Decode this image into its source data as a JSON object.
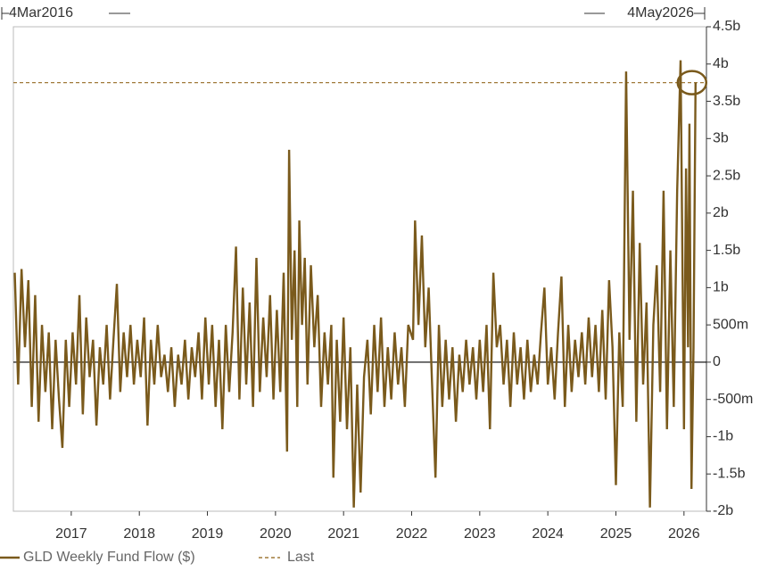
{
  "chart_data": {
    "type": "line",
    "start_label": "4Mar2016",
    "end_label": "4May2026",
    "x": [
      2016.17,
      2016.22,
      2016.27,
      2016.32,
      2016.37,
      2016.42,
      2016.47,
      2016.52,
      2016.57,
      2016.62,
      2016.67,
      2016.72,
      2016.77,
      2016.82,
      2016.87,
      2016.92,
      2016.97,
      2017.02,
      2017.07,
      2017.12,
      2017.17,
      2017.22,
      2017.27,
      2017.32,
      2017.37,
      2017.42,
      2017.47,
      2017.52,
      2017.57,
      2017.62,
      2017.67,
      2017.72,
      2017.77,
      2017.82,
      2017.87,
      2017.92,
      2017.97,
      2018.02,
      2018.07,
      2018.12,
      2018.17,
      2018.22,
      2018.27,
      2018.32,
      2018.37,
      2018.42,
      2018.47,
      2018.52,
      2018.57,
      2018.62,
      2018.67,
      2018.72,
      2018.77,
      2018.82,
      2018.87,
      2018.92,
      2018.97,
      2019.02,
      2019.07,
      2019.12,
      2019.17,
      2019.22,
      2019.27,
      2019.32,
      2019.37,
      2019.42,
      2019.47,
      2019.52,
      2019.57,
      2019.62,
      2019.67,
      2019.72,
      2019.77,
      2019.82,
      2019.87,
      2019.92,
      2019.97,
      2020.02,
      2020.07,
      2020.12,
      2020.17,
      2020.2,
      2020.24,
      2020.28,
      2020.32,
      2020.35,
      2020.39,
      2020.43,
      2020.47,
      2020.52,
      2020.57,
      2020.62,
      2020.67,
      2020.72,
      2020.77,
      2020.82,
      2020.85,
      2020.9,
      2020.95,
      2021.0,
      2021.05,
      2021.1,
      2021.15,
      2021.2,
      2021.25,
      2021.3,
      2021.35,
      2021.4,
      2021.45,
      2021.5,
      2021.55,
      2021.6,
      2021.65,
      2021.7,
      2021.75,
      2021.8,
      2021.85,
      2021.9,
      2021.95,
      2022.02,
      2022.05,
      2022.1,
      2022.15,
      2022.2,
      2022.25,
      2022.3,
      2022.35,
      2022.4,
      2022.45,
      2022.5,
      2022.55,
      2022.6,
      2022.65,
      2022.7,
      2022.75,
      2022.8,
      2022.85,
      2022.9,
      2022.95,
      2023.0,
      2023.05,
      2023.1,
      2023.15,
      2023.2,
      2023.25,
      2023.3,
      2023.35,
      2023.4,
      2023.45,
      2023.5,
      2023.55,
      2023.6,
      2023.65,
      2023.7,
      2023.75,
      2023.8,
      2023.85,
      2023.9,
      2023.95,
      2024.0,
      2024.05,
      2024.1,
      2024.15,
      2024.2,
      2024.25,
      2024.3,
      2024.35,
      2024.4,
      2024.45,
      2024.5,
      2024.55,
      2024.6,
      2024.65,
      2024.7,
      2024.75,
      2024.8,
      2024.85,
      2024.9,
      2024.95,
      2025.0,
      2025.05,
      2025.1,
      2025.15,
      2025.2,
      2025.25,
      2025.3,
      2025.35,
      2025.4,
      2025.45,
      2025.5,
      2025.55,
      2025.6,
      2025.65,
      2025.7,
      2025.75,
      2025.8,
      2025.85,
      2025.9,
      2025.95,
      2026.0,
      2026.03,
      2026.06,
      2026.08,
      2026.11,
      2026.14,
      2026.17
    ],
    "series": [
      {
        "name": "GLD Weekly Fund Flow ($)",
        "color": "#7a5a1c",
        "values": [
          1200000000.0,
          -300000000.0,
          1250000000.0,
          200000000.0,
          1100000000.0,
          -600000000.0,
          900000000.0,
          -800000000.0,
          500000000.0,
          -400000000.0,
          400000000.0,
          -900000000.0,
          300000000.0,
          -500000000.0,
          -1150000000.0,
          300000000.0,
          -600000000.0,
          400000000.0,
          -300000000.0,
          900000000.0,
          -700000000.0,
          600000000.0,
          -200000000.0,
          300000000.0,
          -850000000.0,
          200000000.0,
          -300000000.0,
          500000000.0,
          -500000000.0,
          300000000.0,
          1050000000.0,
          -400000000.0,
          400000000.0,
          -200000000.0,
          500000000.0,
          -300000000.0,
          300000000.0,
          -200000000.0,
          600000000.0,
          -850000000.0,
          300000000.0,
          -300000000.0,
          500000000.0,
          -200000000.0,
          100000000.0,
          -400000000.0,
          200000000.0,
          -600000000.0,
          100000000.0,
          -300000000.0,
          300000000.0,
          -500000000.0,
          200000000.0,
          -200000000.0,
          400000000.0,
          -500000000.0,
          600000000.0,
          -300000000.0,
          500000000.0,
          -600000000.0,
          300000000.0,
          -900000000.0,
          500000000.0,
          -400000000.0,
          400000000.0,
          1550000000.0,
          -500000000.0,
          1000000000.0,
          -300000000.0,
          800000000.0,
          -600000000.0,
          1400000000.0,
          -400000000.0,
          600000000.0,
          -200000000.0,
          900000000.0,
          -500000000.0,
          700000000.0,
          -400000000.0,
          1200000000.0,
          -1200000000.0,
          2850000000.0,
          300000000.0,
          1500000000.0,
          -600000000.0,
          1900000000.0,
          500000000.0,
          1400000000.0,
          -300000000.0,
          1300000000.0,
          200000000.0,
          900000000.0,
          -600000000.0,
          400000000.0,
          -300000000.0,
          500000000.0,
          -1550000000.0,
          300000000.0,
          -800000000.0,
          600000000.0,
          -900000000.0,
          200000000.0,
          -1950000000.0,
          -300000000.0,
          -1750000000.0,
          -200000000.0,
          300000000.0,
          -700000000.0,
          500000000.0,
          -400000000.0,
          600000000.0,
          -600000000.0,
          200000000.0,
          -500000000.0,
          400000000.0,
          -300000000.0,
          200000000.0,
          -600000000.0,
          500000000.0,
          300000000.0,
          1900000000.0,
          500000000.0,
          1700000000.0,
          200000000.0,
          1000000000.0,
          -300000000.0,
          -1550000000.0,
          500000000.0,
          -600000000.0,
          300000000.0,
          -500000000.0,
          200000000.0,
          -800000000.0,
          100000000.0,
          -400000000.0,
          300000000.0,
          -300000000.0,
          200000000.0,
          -500000000.0,
          300000000.0,
          -400000000.0,
          500000000.0,
          -900000000.0,
          1200000000.0,
          200000000.0,
          500000000.0,
          -300000000.0,
          300000000.0,
          -600000000.0,
          400000000.0,
          -300000000.0,
          200000000.0,
          -500000000.0,
          300000000.0,
          -400000000.0,
          100000000.0,
          -300000000.0,
          400000000.0,
          1000000000.0,
          -300000000.0,
          200000000.0,
          -500000000.0,
          400000000.0,
          1150000000.0,
          -600000000.0,
          500000000.0,
          -400000000.0,
          300000000.0,
          -200000000.0,
          400000000.0,
          -300000000.0,
          600000000.0,
          -200000000.0,
          500000000.0,
          -400000000.0,
          700000000.0,
          -500000000.0,
          1100000000.0,
          200000000.0,
          -1650000000.0,
          400000000.0,
          -600000000.0,
          3900000000.0,
          300000000.0,
          2300000000.0,
          -800000000.0,
          1600000000.0,
          -300000000.0,
          800000000.0,
          -1950000000.0,
          500000000.0,
          1300000000.0,
          -400000000.0,
          2300000000.0,
          -900000000.0,
          1500000000.0,
          -600000000.0,
          2300000000.0,
          4050000000.0,
          -900000000.0,
          2600000000.0,
          200000000.0,
          3200000000.0,
          -1700000000.0,
          200000000.0,
          3750000000.0
        ]
      }
    ],
    "reference_line": {
      "name": "Last",
      "value": 3750000000.0,
      "color": "#a07a3a"
    },
    "xlim": [
      2016.15,
      2026.33
    ],
    "xticks": [
      2017,
      2018,
      2019,
      2020,
      2021,
      2022,
      2023,
      2024,
      2025,
      2026
    ],
    "ylim": [
      -2000000000.0,
      4500000000.0
    ],
    "yticks": [
      {
        "value": 4500000000.0,
        "label": "4.5b"
      },
      {
        "value": 4000000000.0,
        "label": "4b"
      },
      {
        "value": 3500000000.0,
        "label": "3.5b"
      },
      {
        "value": 3000000000.0,
        "label": "3b"
      },
      {
        "value": 2500000000.0,
        "label": "2.5b"
      },
      {
        "value": 2000000000.0,
        "label": "2b"
      },
      {
        "value": 1500000000.0,
        "label": "1.5b"
      },
      {
        "value": 1000000000.0,
        "label": "1b"
      },
      {
        "value": 500000000.0,
        "label": "500m"
      },
      0,
      {
        "value": -500000000.0,
        "label": "-500m"
      },
      {
        "value": -1000000000.0,
        "label": "-1b"
      },
      {
        "value": -1500000000.0,
        "label": "-1.5b"
      },
      {
        "value": -2000000000.0,
        "label": "-2b"
      }
    ],
    "y_axis_side": "right",
    "grid": false
  }
}
